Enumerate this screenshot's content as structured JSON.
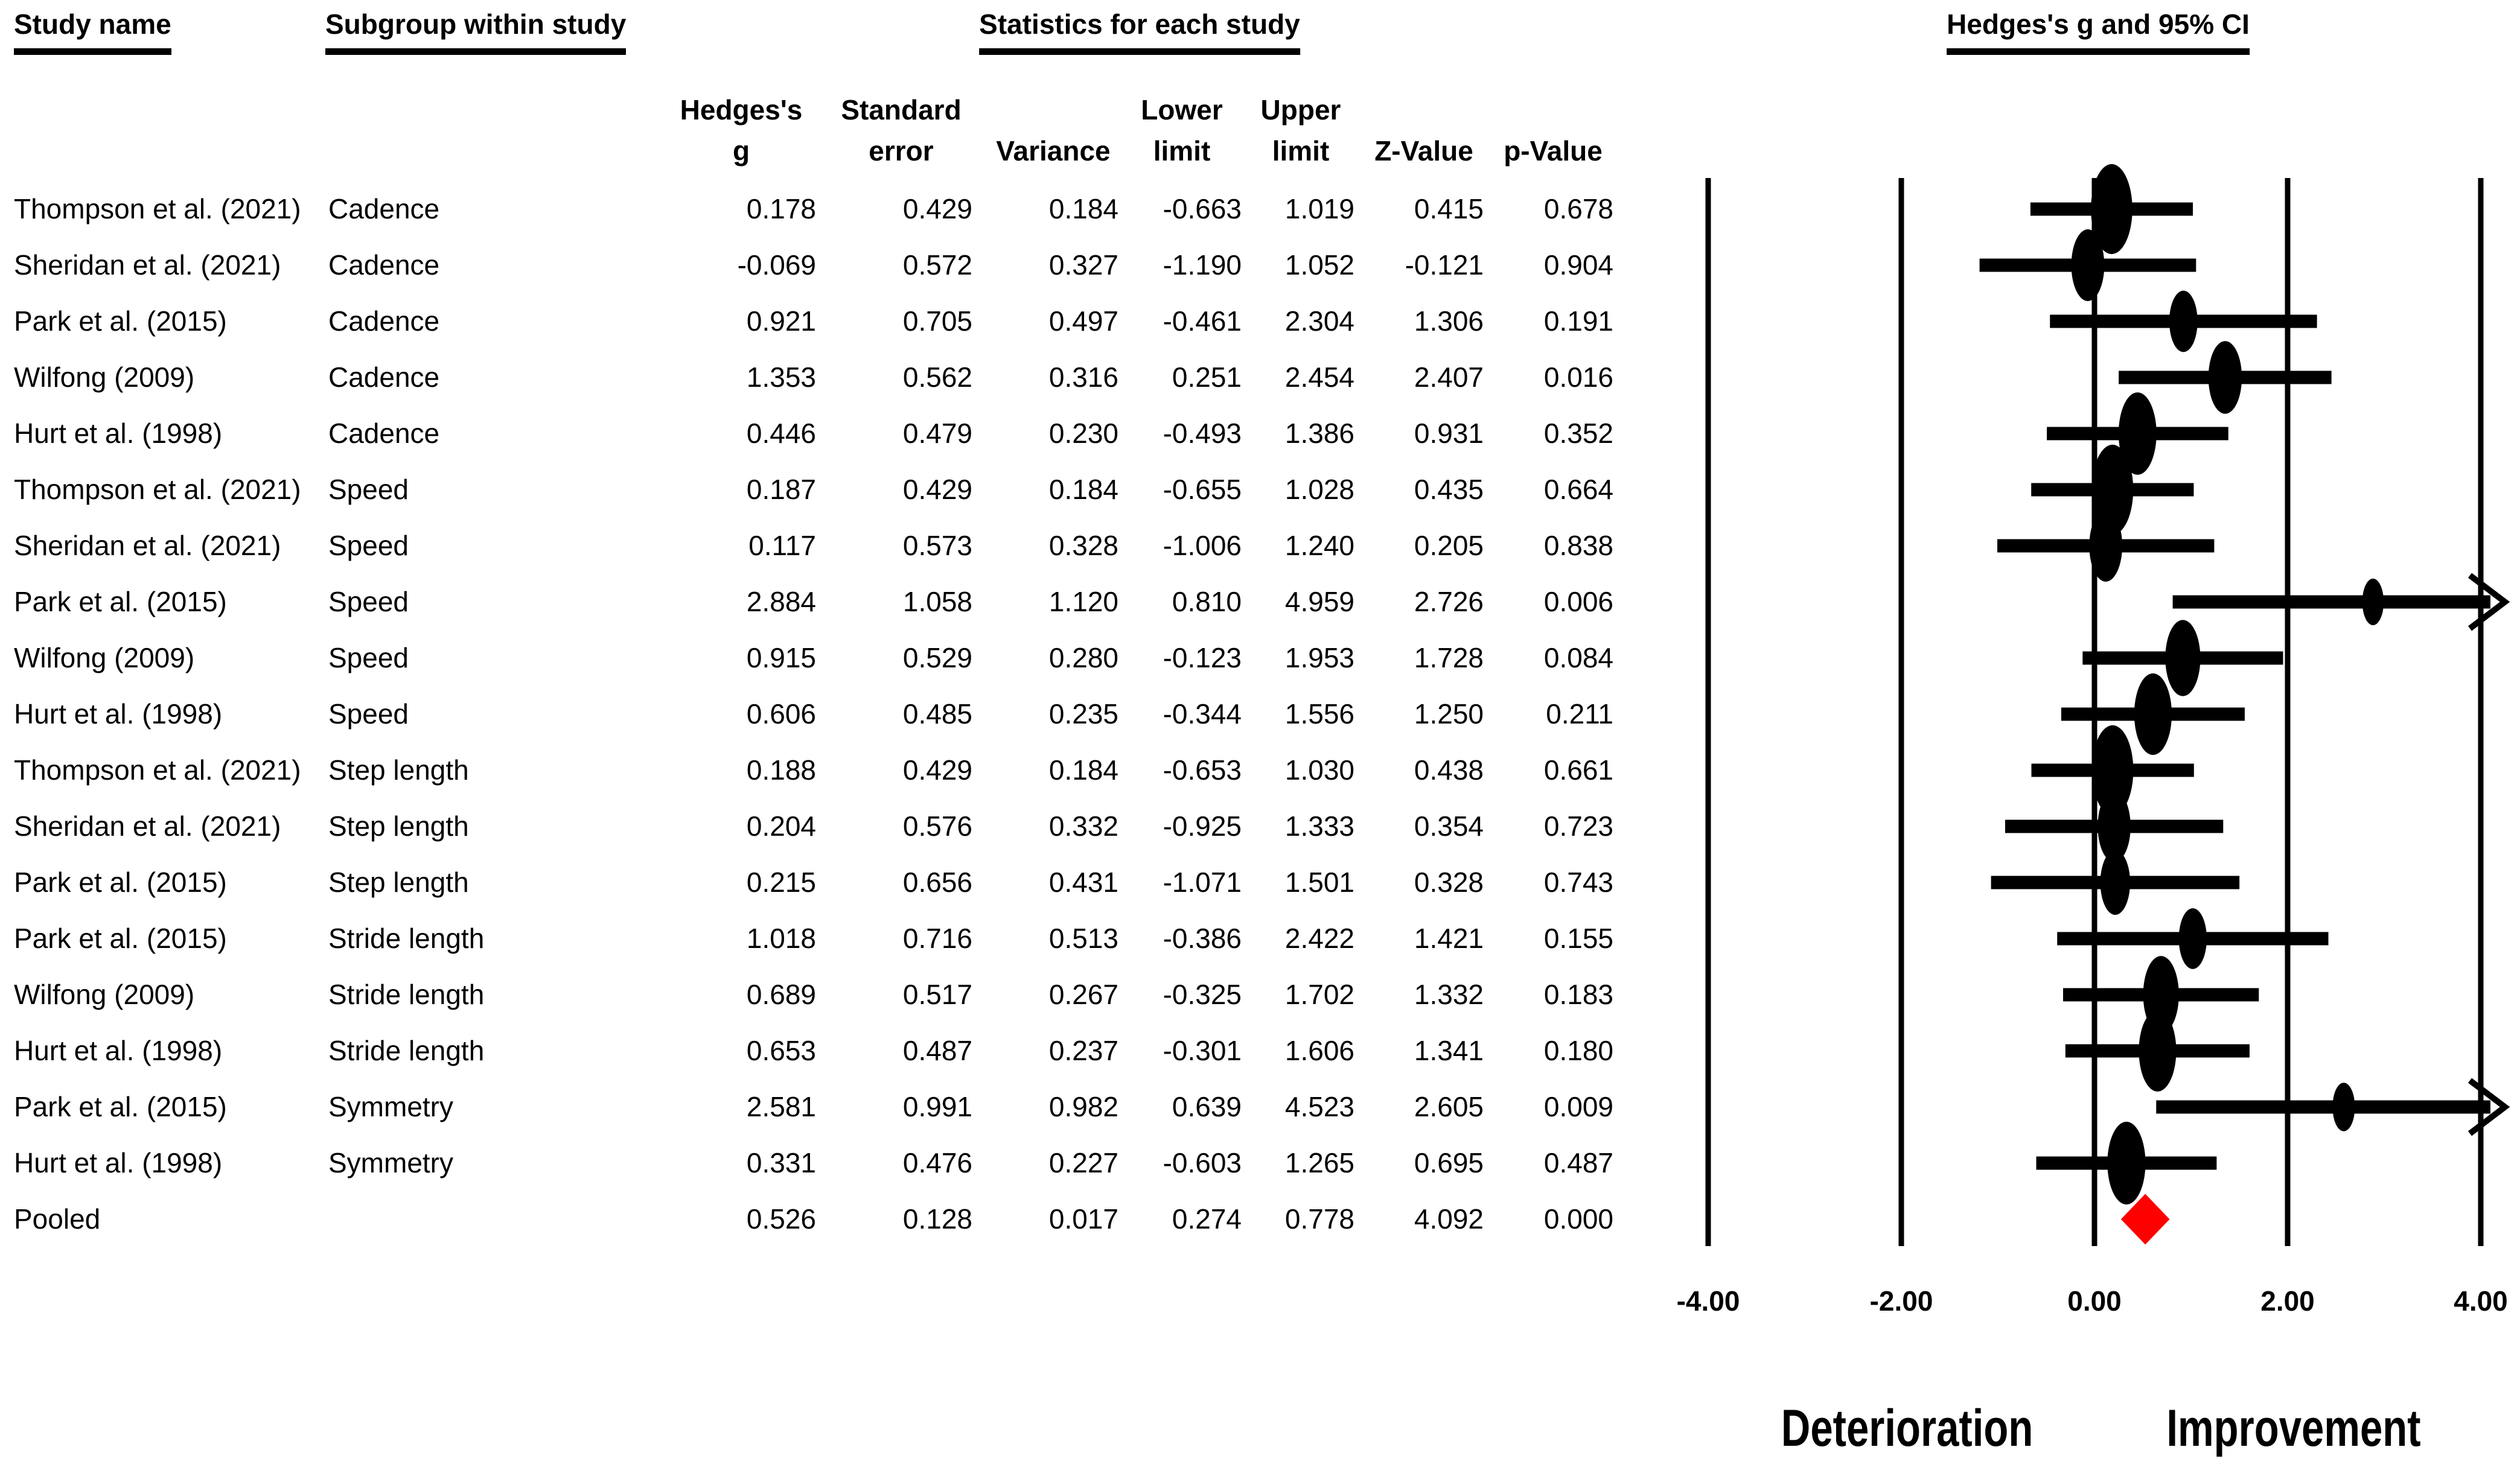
{
  "headers": {
    "study_name": "Study name",
    "subgroup": "Subgroup within study",
    "statistics": "Statistics for each study",
    "plot": "Hedges's g and 95% CI"
  },
  "stat_columns": [
    {
      "line1": "Hedges's",
      "line2": "g"
    },
    {
      "line1": "Standard",
      "line2": "error"
    },
    {
      "line1": "",
      "line2": "Variance"
    },
    {
      "line1": "Lower",
      "line2": "limit"
    },
    {
      "line1": "Upper",
      "line2": "limit"
    },
    {
      "line1": "",
      "line2": "Z-Value"
    },
    {
      "line1": "",
      "line2": "p-Value"
    }
  ],
  "chart_data": {
    "type": "forest",
    "effect_measure": "Hedges's g",
    "x_axis": {
      "xlim": [
        -4,
        4
      ],
      "ticks": [
        -4,
        -2,
        0,
        2,
        4
      ],
      "tick_labels": [
        "-4.00",
        "-2.00",
        "0.00",
        "2.00",
        "4.00"
      ],
      "gridlines": true
    },
    "footer_labels": {
      "left": "Deterioration",
      "right": "Improvement"
    },
    "colors": {
      "marker": "#000000",
      "pooled": "#ff0000",
      "background": "#ffffff"
    },
    "studies": [
      {
        "study": "Thompson et al. (2021)",
        "subgroup": "Cadence",
        "g": "0.178",
        "se": "0.429",
        "variance": "0.184",
        "ll": "-0.663",
        "ul": "1.019",
        "z": "0.415",
        "p": "0.678",
        "pooled": false
      },
      {
        "study": "Sheridan et al. (2021)",
        "subgroup": "Cadence",
        "g": "-0.069",
        "se": "0.572",
        "variance": "0.327",
        "ll": "-1.190",
        "ul": "1.052",
        "z": "-0.121",
        "p": "0.904",
        "pooled": false
      },
      {
        "study": "Park et al. (2015)",
        "subgroup": "Cadence",
        "g": "0.921",
        "se": "0.705",
        "variance": "0.497",
        "ll": "-0.461",
        "ul": "2.304",
        "z": "1.306",
        "p": "0.191",
        "pooled": false
      },
      {
        "study": "Wilfong (2009)",
        "subgroup": "Cadence",
        "g": "1.353",
        "se": "0.562",
        "variance": "0.316",
        "ll": "0.251",
        "ul": "2.454",
        "z": "2.407",
        "p": "0.016",
        "pooled": false
      },
      {
        "study": "Hurt et al. (1998)",
        "subgroup": "Cadence",
        "g": "0.446",
        "se": "0.479",
        "variance": "0.230",
        "ll": "-0.493",
        "ul": "1.386",
        "z": "0.931",
        "p": "0.352",
        "pooled": false
      },
      {
        "study": "Thompson et al. (2021)",
        "subgroup": "Speed",
        "g": "0.187",
        "se": "0.429",
        "variance": "0.184",
        "ll": "-0.655",
        "ul": "1.028",
        "z": "0.435",
        "p": "0.664",
        "pooled": false
      },
      {
        "study": "Sheridan et al. (2021)",
        "subgroup": "Speed",
        "g": "0.117",
        "se": "0.573",
        "variance": "0.328",
        "ll": "-1.006",
        "ul": "1.240",
        "z": "0.205",
        "p": "0.838",
        "pooled": false
      },
      {
        "study": "Park et al. (2015)",
        "subgroup": "Speed",
        "g": "2.884",
        "se": "1.058",
        "variance": "1.120",
        "ll": "0.810",
        "ul": "4.959",
        "z": "2.726",
        "p": "0.006",
        "pooled": false
      },
      {
        "study": "Wilfong (2009)",
        "subgroup": "Speed",
        "g": "0.915",
        "se": "0.529",
        "variance": "0.280",
        "ll": "-0.123",
        "ul": "1.953",
        "z": "1.728",
        "p": "0.084",
        "pooled": false
      },
      {
        "study": "Hurt et al. (1998)",
        "subgroup": "Speed",
        "g": "0.606",
        "se": "0.485",
        "variance": "0.235",
        "ll": "-0.344",
        "ul": "1.556",
        "z": "1.250",
        "p": "0.211",
        "pooled": false
      },
      {
        "study": "Thompson et al. (2021)",
        "subgroup": "Step length",
        "g": "0.188",
        "se": "0.429",
        "variance": "0.184",
        "ll": "-0.653",
        "ul": "1.030",
        "z": "0.438",
        "p": "0.661",
        "pooled": false
      },
      {
        "study": "Sheridan et al. (2021)",
        "subgroup": "Step length",
        "g": "0.204",
        "se": "0.576",
        "variance": "0.332",
        "ll": "-0.925",
        "ul": "1.333",
        "z": "0.354",
        "p": "0.723",
        "pooled": false
      },
      {
        "study": "Park et al. (2015)",
        "subgroup": "Step length",
        "g": "0.215",
        "se": "0.656",
        "variance": "0.431",
        "ll": "-1.071",
        "ul": "1.501",
        "z": "0.328",
        "p": "0.743",
        "pooled": false
      },
      {
        "study": "Park et al. (2015)",
        "subgroup": "Stride length",
        "g": "1.018",
        "se": "0.716",
        "variance": "0.513",
        "ll": "-0.386",
        "ul": "2.422",
        "z": "1.421",
        "p": "0.155",
        "pooled": false
      },
      {
        "study": "Wilfong (2009)",
        "subgroup": "Stride length",
        "g": "0.689",
        "se": "0.517",
        "variance": "0.267",
        "ll": "-0.325",
        "ul": "1.702",
        "z": "1.332",
        "p": "0.183",
        "pooled": false
      },
      {
        "study": "Hurt et al. (1998)",
        "subgroup": "Stride length",
        "g": "0.653",
        "se": "0.487",
        "variance": "0.237",
        "ll": "-0.301",
        "ul": "1.606",
        "z": "1.341",
        "p": "0.180",
        "pooled": false
      },
      {
        "study": "Park et al. (2015)",
        "subgroup": "Symmetry",
        "g": "2.581",
        "se": "0.991",
        "variance": "0.982",
        "ll": "0.639",
        "ul": "4.523",
        "z": "2.605",
        "p": "0.009",
        "pooled": false
      },
      {
        "study": "Hurt et al. (1998)",
        "subgroup": "Symmetry",
        "g": "0.331",
        "se": "0.476",
        "variance": "0.227",
        "ll": "-0.603",
        "ul": "1.265",
        "z": "0.695",
        "p": "0.487",
        "pooled": false
      },
      {
        "study": "Pooled",
        "subgroup": "",
        "g": "0.526",
        "se": "0.128",
        "variance": "0.017",
        "ll": "0.274",
        "ul": "0.778",
        "z": "4.092",
        "p": "0.000",
        "pooled": true
      }
    ]
  }
}
